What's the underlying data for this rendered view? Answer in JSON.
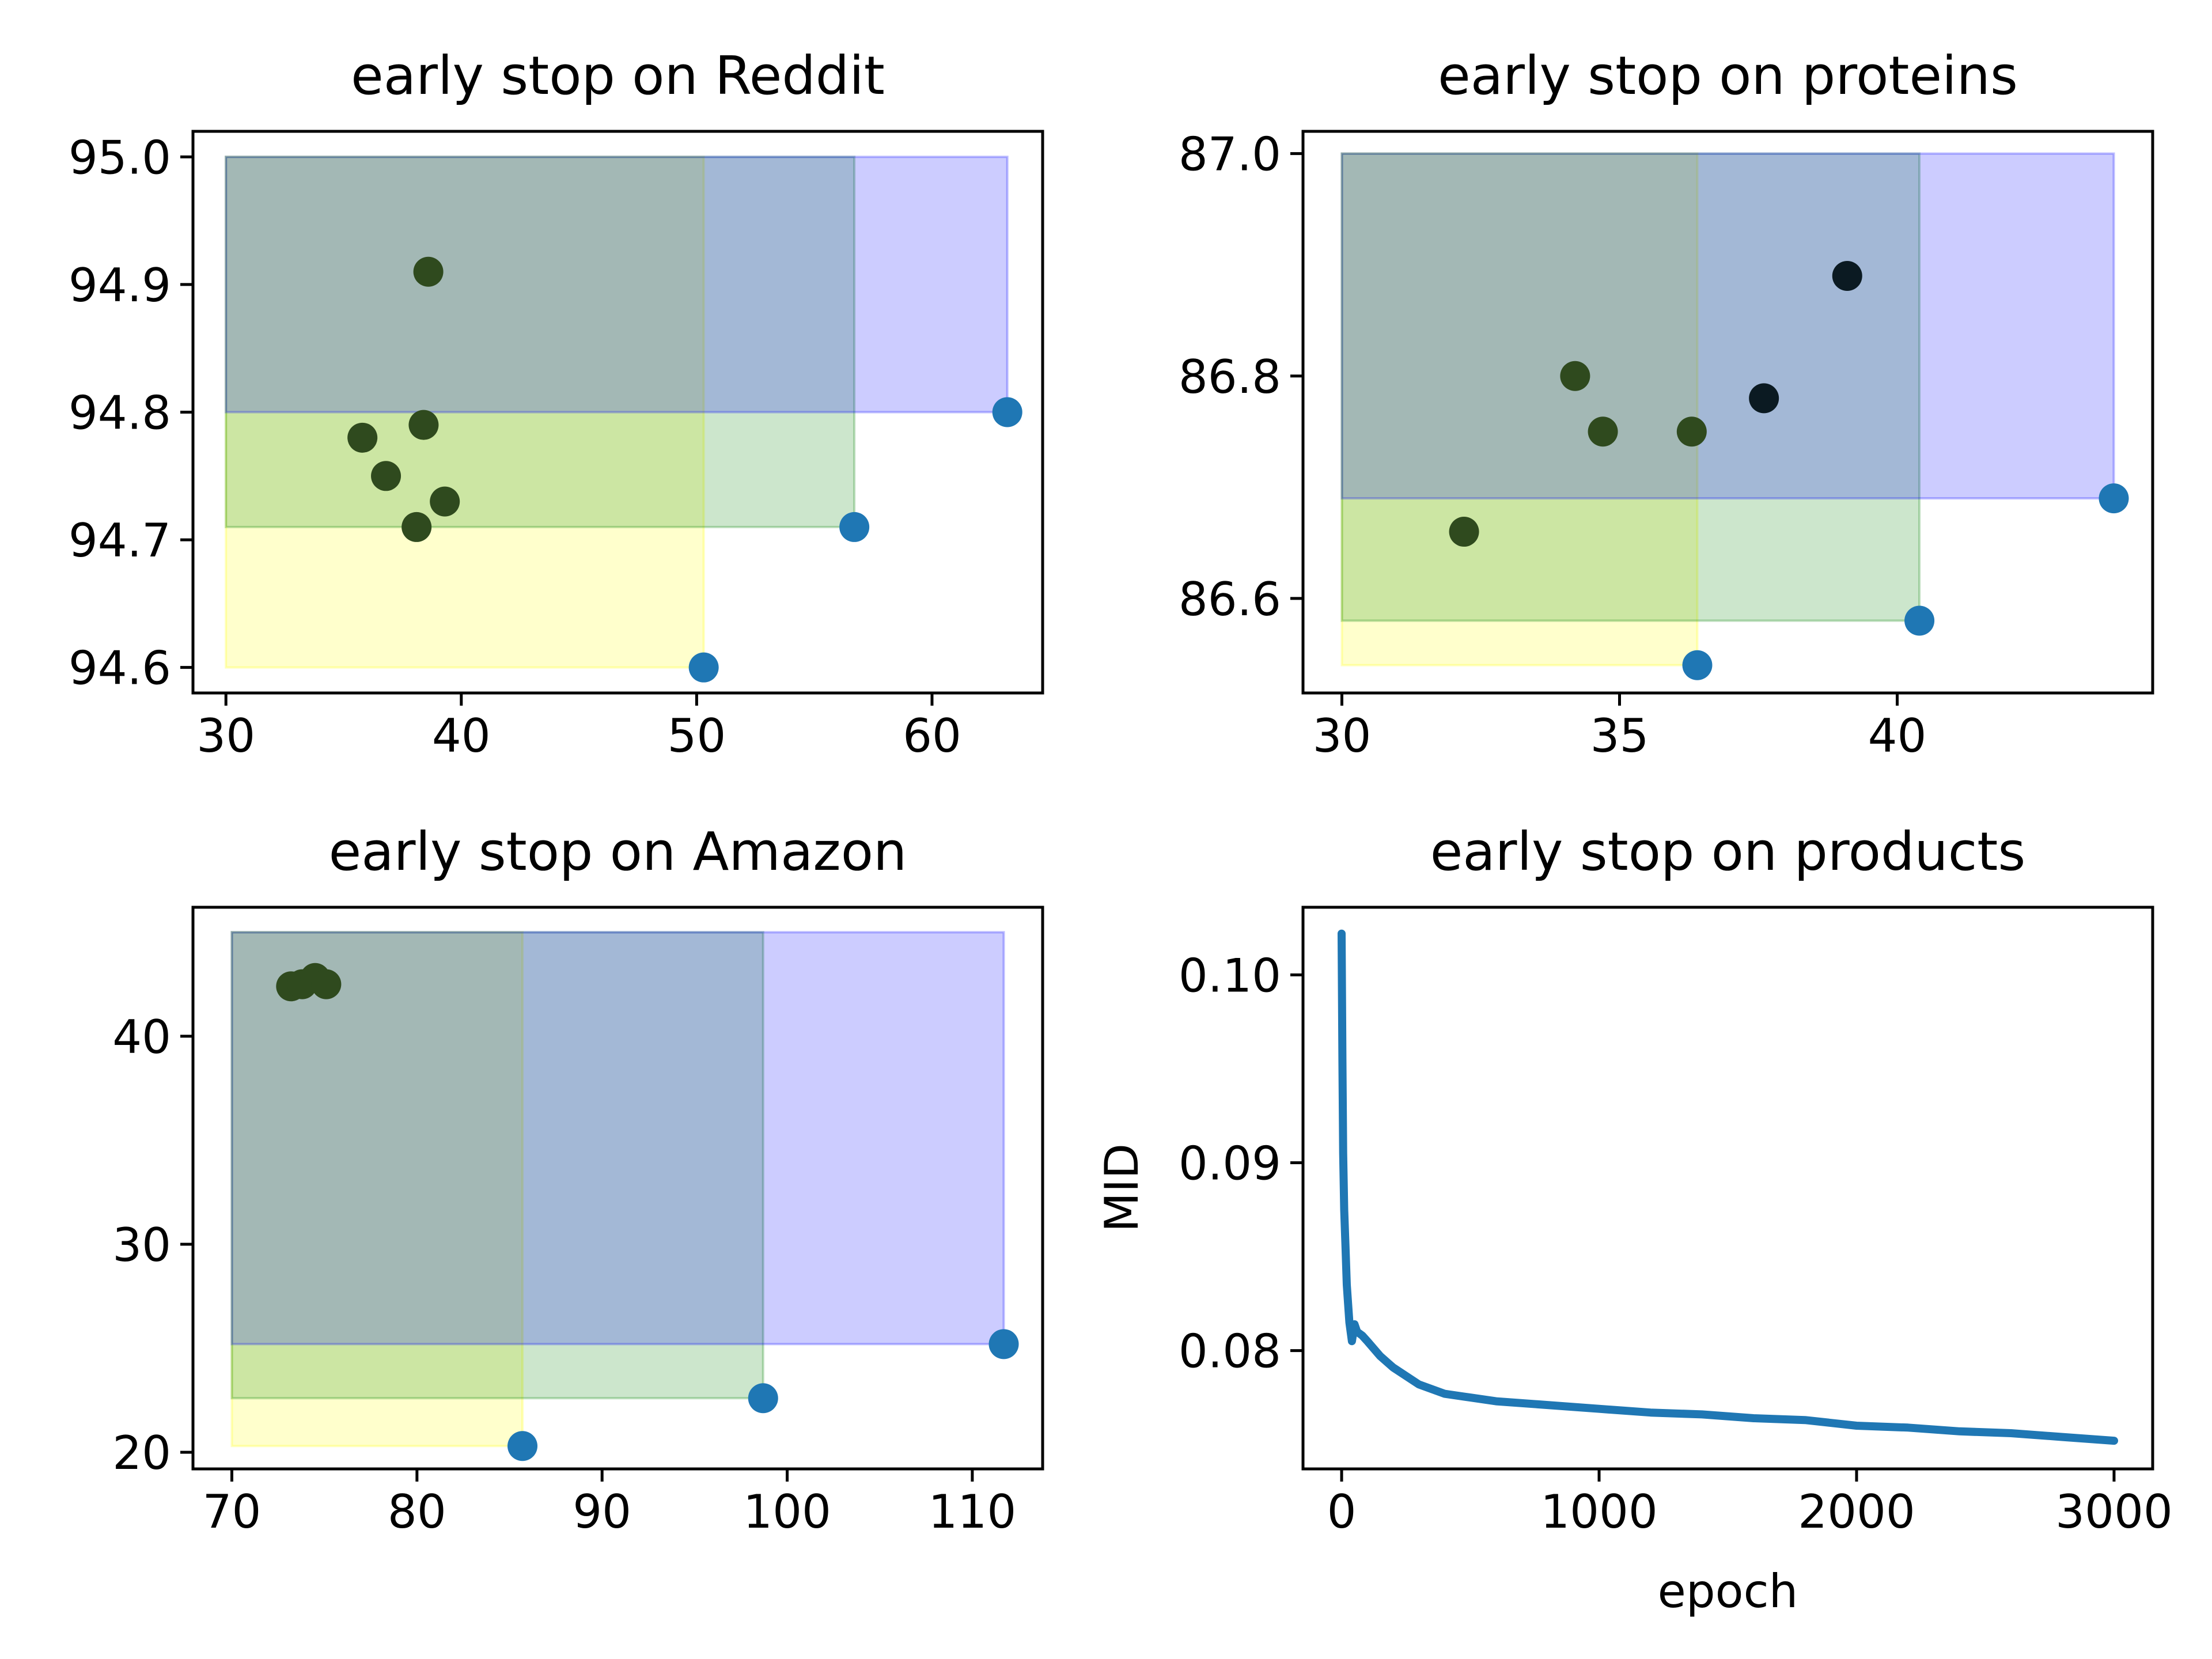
{
  "colors": {
    "point": "#1f77b4",
    "line": "#1f77b4",
    "rect_fills": [
      "#ffff00",
      "#008000",
      "#0000ff"
    ],
    "rect_alpha": 0.2,
    "inner_points": "#2f4a1e",
    "inner_points_dark": "#0b1a22"
  },
  "chart_data": [
    {
      "type": "scatter",
      "title": "early stop on Reddit",
      "xlim": [
        28.6,
        64.7
      ],
      "ylim": [
        94.58,
        95.02
      ],
      "xticks": [
        30,
        40,
        50,
        60
      ],
      "yticks": [
        94.6,
        94.7,
        94.8,
        94.9,
        95.0
      ],
      "ytick_decimals": 1,
      "box_origin": [
        30,
        95.0
      ],
      "frontier_points": [
        {
          "x": 50.3,
          "y": 94.6
        },
        {
          "x": 56.7,
          "y": 94.71
        },
        {
          "x": 63.2,
          "y": 94.8
        }
      ],
      "other_points": [
        {
          "x": 38.6,
          "y": 94.91
        },
        {
          "x": 35.8,
          "y": 94.78
        },
        {
          "x": 38.4,
          "y": 94.79
        },
        {
          "x": 36.8,
          "y": 94.75
        },
        {
          "x": 39.3,
          "y": 94.73
        },
        {
          "x": 38.1,
          "y": 94.71
        }
      ]
    },
    {
      "type": "scatter",
      "title": "early stop on proteins",
      "xlim": [
        29.3,
        44.6
      ],
      "ylim": [
        86.515,
        87.02
      ],
      "xticks": [
        30,
        35,
        40
      ],
      "yticks": [
        86.6,
        86.8,
        87.0
      ],
      "ytick_decimals": 1,
      "box_origin": [
        30,
        87.0
      ],
      "frontier_points": [
        {
          "x": 36.4,
          "y": 86.54
        },
        {
          "x": 40.4,
          "y": 86.58
        },
        {
          "x": 43.9,
          "y": 86.69
        }
      ],
      "other_points": [
        {
          "x": 32.2,
          "y": 86.66
        },
        {
          "x": 34.2,
          "y": 86.8
        },
        {
          "x": 34.7,
          "y": 86.75
        },
        {
          "x": 36.3,
          "y": 86.75
        },
        {
          "x": 37.6,
          "y": 86.78,
          "dark": true
        },
        {
          "x": 39.1,
          "y": 86.89,
          "dark": true
        }
      ]
    },
    {
      "type": "scatter",
      "title": "early stop on Amazon",
      "xlim": [
        67.9,
        113.8
      ],
      "ylim": [
        19.2,
        46.2
      ],
      "xticks": [
        70,
        80,
        90,
        100,
        110
      ],
      "yticks": [
        20,
        30,
        40
      ],
      "ytick_decimals": 0,
      "box_origin": [
        70,
        45.0
      ],
      "frontier_points": [
        {
          "x": 85.7,
          "y": 20.3
        },
        {
          "x": 98.7,
          "y": 22.6
        },
        {
          "x": 111.7,
          "y": 25.2
        }
      ],
      "other_points": [
        {
          "x": 73.2,
          "y": 42.4
        },
        {
          "x": 73.8,
          "y": 42.5
        },
        {
          "x": 74.5,
          "y": 42.8
        },
        {
          "x": 75.1,
          "y": 42.5
        }
      ]
    },
    {
      "type": "line",
      "title": "early stop on products",
      "xlabel": "epoch",
      "ylabel": "MID",
      "xlim": [
        -150,
        3150
      ],
      "ylim": [
        0.0737,
        0.1036
      ],
      "xticks": [
        0,
        1000,
        2000,
        3000
      ],
      "yticks": [
        0.08,
        0.09,
        0.1
      ],
      "ytick_decimals": 2,
      "x": [
        0,
        3,
        6,
        10,
        15,
        20,
        30,
        40,
        50,
        60,
        80,
        100,
        150,
        200,
        300,
        400,
        500,
        600,
        800,
        1000,
        1200,
        1400,
        1600,
        1800,
        2000,
        2200,
        2400,
        2600,
        2800,
        3000
      ],
      "y": [
        0.1022,
        0.0955,
        0.0905,
        0.0875,
        0.0855,
        0.0835,
        0.0815,
        0.0805,
        0.0814,
        0.081,
        0.0808,
        0.0805,
        0.0797,
        0.0791,
        0.0782,
        0.0777,
        0.0775,
        0.0773,
        0.0771,
        0.0769,
        0.0767,
        0.0766,
        0.0764,
        0.0763,
        0.076,
        0.0759,
        0.0757,
        0.0756,
        0.0754,
        0.0752
      ]
    }
  ]
}
